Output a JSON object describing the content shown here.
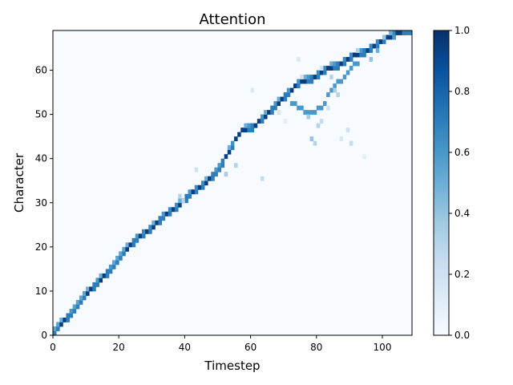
{
  "chart_data": {
    "type": "heatmap",
    "title": "Attention",
    "xlabel": "Timestep",
    "ylabel": "Character",
    "xlim": [
      0,
      109
    ],
    "ylim": [
      0,
      69
    ],
    "xticks": [
      0,
      20,
      40,
      60,
      80,
      100
    ],
    "yticks": [
      0,
      10,
      20,
      30,
      40,
      50,
      60
    ],
    "colormap": "Blues",
    "colorbar": {
      "range": [
        0.0,
        1.0
      ],
      "ticks": [
        "0.0",
        "0.2",
        "0.4",
        "0.6",
        "0.8",
        "1.0"
      ]
    },
    "colors": {
      "low": "#f7fbff",
      "high": "#08306b"
    },
    "main_path": [
      [
        0,
        0
      ],
      [
        2,
        2
      ],
      [
        6,
        5
      ],
      [
        10,
        9
      ],
      [
        14,
        12
      ],
      [
        18,
        15
      ],
      [
        22,
        19
      ],
      [
        26,
        22
      ],
      [
        30,
        24
      ],
      [
        34,
        27
      ],
      [
        38,
        29
      ],
      [
        42,
        32
      ],
      [
        46,
        34
      ],
      [
        50,
        37
      ],
      [
        54,
        42
      ],
      [
        57,
        46
      ],
      [
        61,
        47
      ],
      [
        64,
        49
      ],
      [
        68,
        52
      ],
      [
        72,
        55
      ],
      [
        75,
        57
      ],
      [
        79,
        58
      ],
      [
        83,
        60
      ],
      [
        87,
        61
      ],
      [
        91,
        63
      ],
      [
        95,
        64
      ],
      [
        99,
        66
      ],
      [
        104,
        68
      ],
      [
        109,
        69
      ]
    ],
    "secondary_path": [
      [
        72,
        53
      ],
      [
        76,
        51
      ],
      [
        79,
        50
      ],
      [
        82,
        52
      ],
      [
        85,
        56
      ],
      [
        88,
        58
      ],
      [
        91,
        61
      ],
      [
        93,
        62
      ]
    ],
    "scatter_cells": [
      [
        52,
        36,
        0.35
      ],
      [
        55,
        38,
        0.3
      ],
      [
        63,
        35,
        0.25
      ],
      [
        43,
        37,
        0.2
      ],
      [
        38,
        31,
        0.3
      ],
      [
        39,
        30,
        0.3
      ],
      [
        77,
        49,
        0.35
      ],
      [
        78,
        44,
        0.4
      ],
      [
        79,
        43,
        0.3
      ],
      [
        80,
        47,
        0.3
      ],
      [
        81,
        48,
        0.25
      ],
      [
        83,
        51,
        0.2
      ],
      [
        75,
        58,
        0.2
      ],
      [
        74,
        62,
        0.15
      ],
      [
        81,
        60,
        0.2
      ],
      [
        84,
        58,
        0.3
      ],
      [
        85,
        55,
        0.35
      ],
      [
        86,
        54,
        0.3
      ],
      [
        89,
        46,
        0.2
      ],
      [
        90,
        43,
        0.25
      ],
      [
        96,
        62,
        0.4
      ],
      [
        98,
        64,
        0.5
      ],
      [
        100,
        67,
        0.4
      ],
      [
        102,
        68,
        0.5
      ],
      [
        103,
        67,
        0.6
      ],
      [
        106,
        68,
        0.7
      ],
      [
        60,
        55,
        0.15
      ],
      [
        68,
        50,
        0.15
      ],
      [
        70,
        48,
        0.1
      ],
      [
        94,
        40,
        0.1
      ],
      [
        87,
        44,
        0.15
      ],
      [
        92,
        64,
        0.3
      ]
    ]
  }
}
